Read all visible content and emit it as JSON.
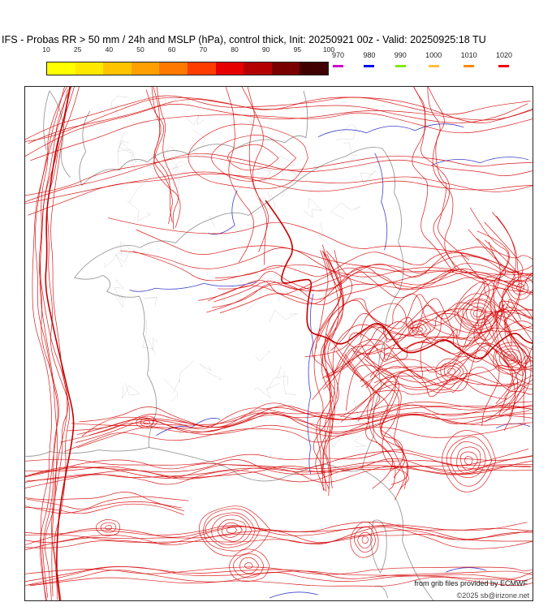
{
  "title": "IFS - Probas RR > 50 mm / 24h and MSLP (hPa), control thick, Init: 20250921 00z - Valid: 20250925:18 TU",
  "legend": {
    "probability": {
      "ticks": [
        "10",
        "25",
        "40",
        "50",
        "60",
        "70",
        "80",
        "90",
        "95",
        "100"
      ],
      "colors": [
        "#ffff00",
        "#ffe800",
        "#ffc400",
        "#ffa000",
        "#ff7800",
        "#ff3c00",
        "#e60000",
        "#b40000",
        "#7a0000",
        "#400000"
      ]
    },
    "pressure": {
      "items": [
        {
          "label": "970",
          "color": "#cc00cc"
        },
        {
          "label": "980",
          "color": "#0000ee"
        },
        {
          "label": "990",
          "color": "#80e800"
        },
        {
          "label": "1000",
          "color": "#ffc040"
        },
        {
          "label": "1010",
          "color": "#ff8800"
        },
        {
          "label": "1020",
          "color": "#ee0000"
        }
      ]
    }
  },
  "map": {
    "isobar_color": "#d40000",
    "control_color": "#c40000",
    "river_color": "#4040cc",
    "coast_color": "#999999",
    "admin_color": "#cfcfcf"
  },
  "credits": {
    "line1": "from grib files provided by ECMWF",
    "line2": "©2025 sb@irizone.net"
  }
}
